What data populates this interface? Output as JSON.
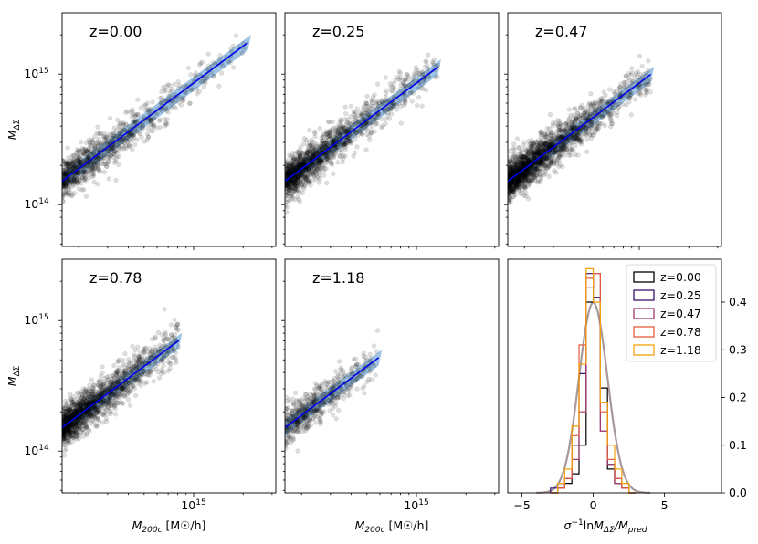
{
  "chart_data": {
    "type": "scatter",
    "colors": {
      "points": "#000000",
      "fit_line": "#0000ee",
      "band": "#8db8de",
      "gauss": "#a89a9a"
    },
    "scatter_panels": [
      {
        "z_label": "z=0.00",
        "ylabel": "M_ΔΣ",
        "xlabel": "",
        "x_range_log10": [
          14.2,
          15.5
        ],
        "fit_end_log10": 15.33,
        "show_xtick_label": false,
        "ylabel_show": true,
        "n_points": 900
      },
      {
        "z_label": "z=0.25",
        "ylabel": "",
        "xlabel": "",
        "x_range_log10": [
          14.2,
          15.5
        ],
        "fit_end_log10": 15.13,
        "show_xtick_label": false,
        "ylabel_show": false,
        "n_points": 1400
      },
      {
        "z_label": "z=0.47",
        "ylabel": "",
        "xlabel": "",
        "x_range_log10": [
          14.2,
          15.5
        ],
        "fit_end_log10": 15.07,
        "show_xtick_label": false,
        "ylabel_show": false,
        "n_points": 1800
      },
      {
        "z_label": "z=0.78",
        "ylabel": "M_ΔΣ",
        "xlabel": "M_200c [M☉/h]",
        "x_range_log10": [
          14.2,
          15.5
        ],
        "fit_end_log10": 14.91,
        "show_xtick_label": true,
        "ylabel_show": true,
        "n_points": 1500
      },
      {
        "z_label": "z=1.18",
        "ylabel": "",
        "xlabel": "M_200c [M☉/h]",
        "x_range_log10": [
          14.2,
          15.5
        ],
        "fit_end_log10": 14.77,
        "show_xtick_label": true,
        "ylabel_show": false,
        "n_points": 500
      }
    ],
    "scatter_axes": {
      "y_range_log10": [
        13.68,
        15.47
      ],
      "y_major_ticks": [
        {
          "value_log10": 14,
          "label": "10",
          "exp": "14"
        },
        {
          "value_log10": 15,
          "label": "10",
          "exp": "15"
        }
      ],
      "x_major_ticks": [
        {
          "value_log10": 15,
          "label": "10",
          "exp": "15"
        }
      ],
      "xscale": "log",
      "yscale": "log"
    },
    "histogram": {
      "xlabel": "σ⁻¹lnM_ΔΣ/M_pred",
      "x_range": [
        -6.0,
        9.0
      ],
      "y_range": [
        0,
        0.49
      ],
      "x_ticks": [
        -5,
        0,
        5
      ],
      "y_ticks": [
        0.0,
        0.1,
        0.2,
        0.3,
        0.4
      ],
      "y_tick_labels": [
        "0.0",
        "0.1",
        "0.2",
        "0.3",
        "0.4"
      ],
      "yaxis_side": "right",
      "bin_width": 0.5,
      "legend_placement": "upper right",
      "series": [
        {
          "name": "z=0.00",
          "color": "#000000",
          "bins_start": -3.0,
          "values": [
            0.0,
            0.01,
            0.02,
            0.04,
            0.1,
            0.4,
            0.41,
            0.22,
            0.05,
            0.02,
            0.01,
            0.0
          ]
        },
        {
          "name": "z=0.25",
          "color": "#3b1170",
          "bins_start": -3.0,
          "values": [
            0.01,
            0.02,
            0.03,
            0.1,
            0.25,
            0.46,
            0.41,
            0.13,
            0.06,
            0.03,
            0.01,
            0.0
          ]
        },
        {
          "name": "z=0.47",
          "color": "#a13a6e",
          "bins_start": -3.0,
          "values": [
            0.0,
            0.01,
            0.03,
            0.07,
            0.17,
            0.43,
            0.46,
            0.13,
            0.06,
            0.02,
            0.01,
            0.0
          ]
        },
        {
          "name": "z=0.78",
          "color": "#e35a3f",
          "bins_start": -3.0,
          "values": [
            0.0,
            0.01,
            0.03,
            0.12,
            0.31,
            0.45,
            0.46,
            0.17,
            0.07,
            0.03,
            0.01,
            0.0
          ]
        },
        {
          "name": "z=1.18",
          "color": "#f5a10a",
          "bins_start": -3.0,
          "values": [
            0.0,
            0.02,
            0.05,
            0.14,
            0.27,
            0.47,
            0.4,
            0.19,
            0.1,
            0.05,
            0.02,
            0.0
          ]
        }
      ],
      "gaussian": {
        "mean": 0.0,
        "sigma": 1.0,
        "peak": 0.399
      }
    }
  }
}
